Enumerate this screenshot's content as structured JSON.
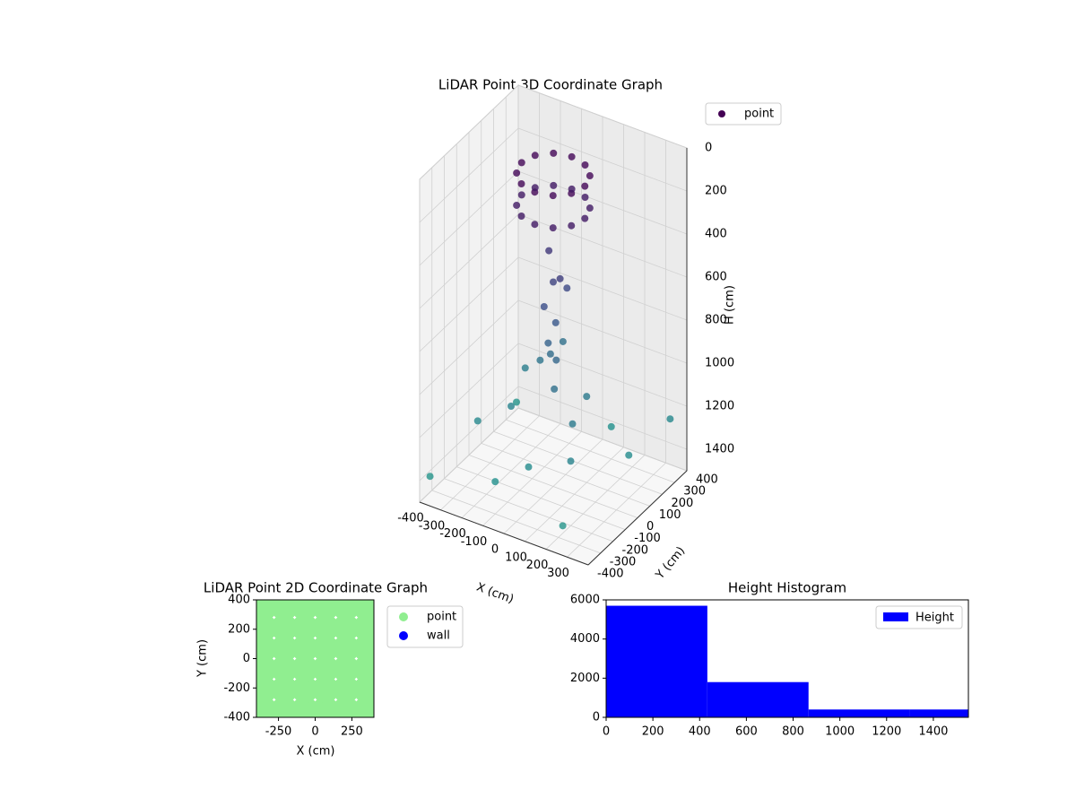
{
  "chart_data": [
    {
      "type": "scatter3d",
      "title": "LiDAR Point 3D Coordinate Graph",
      "xlabel": "X (cm)",
      "ylabel": "Y (cm)",
      "zlabel": "H (cm)",
      "colormap": "viridis",
      "zinverted": true,
      "xlim": [
        -400,
        400
      ],
      "ylim": [
        -400,
        400
      ],
      "zlim": [
        0,
        1500
      ],
      "xticks": [
        -400,
        -300,
        -200,
        -100,
        0,
        100,
        200,
        300
      ],
      "yticks": [
        -400,
        -300,
        -200,
        -100,
        0,
        100,
        200,
        300,
        400
      ],
      "zticks": [
        0,
        200,
        400,
        600,
        800,
        1000,
        1200,
        1400
      ],
      "series": [
        {
          "name": "point",
          "color": "#440154",
          "x": [
            150,
            130,
            75,
            0,
            -75,
            -130,
            -150,
            -130,
            -75,
            0,
            75,
            130,
            150,
            130,
            75,
            0,
            -75,
            -130,
            -150,
            -130,
            -75,
            0,
            75,
            130,
            -50,
            50,
            0,
            30,
            -20,
            0,
            -30,
            20,
            -60,
            40,
            -150,
            150,
            -250,
            200,
            -300,
            300,
            -100,
            100,
            -350,
            250,
            0,
            -200,
            350,
            -380,
            100,
            -100
          ],
          "y": [
            0,
            75,
            130,
            150,
            130,
            75,
            0,
            -75,
            -130,
            -150,
            -130,
            -75,
            0,
            75,
            130,
            150,
            130,
            75,
            0,
            -75,
            -130,
            -150,
            -130,
            -75,
            50,
            -30,
            0,
            60,
            -40,
            20,
            10,
            -10,
            80,
            -60,
            150,
            -100,
            200,
            -200,
            -100,
            100,
            -300,
            300,
            300,
            -350,
            -200,
            0,
            350,
            -350,
            100,
            250
          ],
          "z": [
            50,
            50,
            50,
            50,
            50,
            50,
            50,
            50,
            50,
            50,
            50,
            50,
            200,
            200,
            200,
            200,
            200,
            200,
            200,
            200,
            200,
            200,
            200,
            200,
            450,
            500,
            550,
            600,
            650,
            750,
            850,
            900,
            950,
            1000,
            1050,
            1100,
            1150,
            1200,
            1250,
            1300,
            1350,
            1350,
            1400,
            1400,
            1300,
            1200,
            1250,
            1400,
            1100,
            1000
          ]
        }
      ]
    },
    {
      "type": "scatter",
      "title": "LiDAR Point 2D Coordinate Graph",
      "xlabel": "X (cm)",
      "ylabel": "Y (cm)",
      "xlim": [
        -400,
        400
      ],
      "ylim": [
        -400,
        400
      ],
      "xticks": [
        -250,
        0,
        250
      ],
      "yticks": [
        -400,
        -200,
        0,
        200,
        400
      ],
      "series": [
        {
          "name": "point",
          "color": "#90ee90",
          "x": [
            -350,
            -210,
            -70,
            70,
            210,
            350,
            -350,
            -210,
            -70,
            70,
            210,
            350,
            -350,
            -210,
            -70,
            70,
            210,
            350,
            -350,
            -210,
            -70,
            70,
            210,
            350,
            -350,
            -210,
            -70,
            70,
            210,
            350,
            -350,
            -210,
            -70,
            70,
            210,
            350
          ],
          "y": [
            -350,
            -350,
            -350,
            -350,
            -350,
            -350,
            -210,
            -210,
            -210,
            -210,
            -210,
            -210,
            -70,
            -70,
            -70,
            -70,
            -70,
            -70,
            70,
            70,
            70,
            70,
            70,
            70,
            210,
            210,
            210,
            210,
            210,
            210,
            350,
            350,
            350,
            350,
            350,
            350
          ]
        },
        {
          "name": "wall",
          "color": "#0000ff",
          "x": [],
          "y": []
        }
      ]
    },
    {
      "type": "histogram",
      "title": "Height Histogram",
      "legend": "upper right",
      "xlim": [
        0,
        1550
      ],
      "ylim": [
        0,
        6000
      ],
      "xticks": [
        0,
        200,
        400,
        600,
        800,
        1000,
        1200,
        1400
      ],
      "yticks": [
        0,
        2000,
        4000,
        6000
      ],
      "bins": [
        0,
        433,
        866,
        1299,
        1732
      ],
      "series": [
        {
          "name": "Height",
          "color": "#0000ff",
          "values": [
            5700,
            1800,
            400,
            400
          ]
        }
      ]
    }
  ]
}
